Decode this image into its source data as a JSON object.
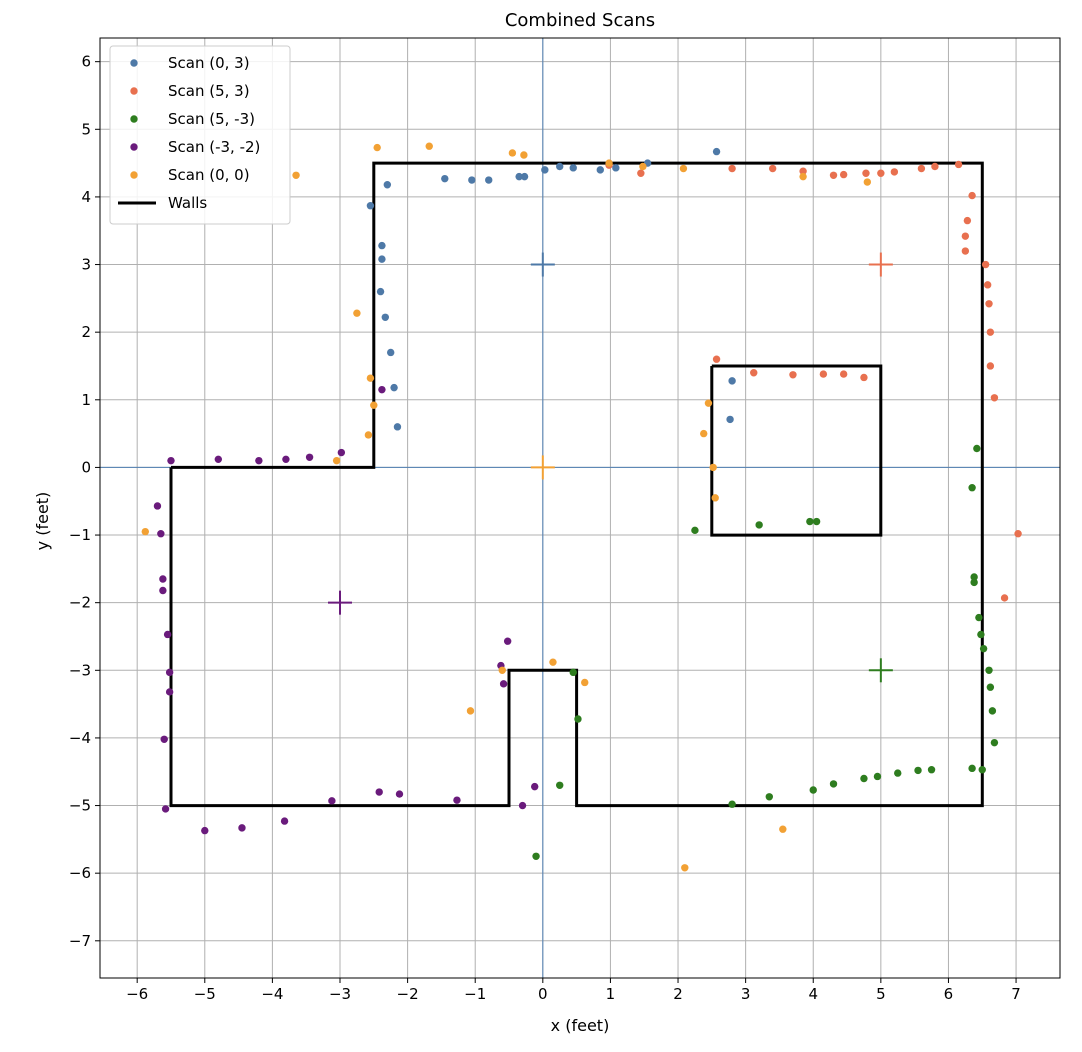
{
  "chart_data": {
    "type": "scatter",
    "title": "Combined Scans",
    "xlabel": "x (feet)",
    "ylabel": "y (feet)",
    "xlim": [
      -6.55,
      7.65
    ],
    "ylim": [
      -7.55,
      6.35
    ],
    "xticks": [
      -6,
      -5,
      -4,
      -3,
      -2,
      -1,
      0,
      1,
      2,
      3,
      4,
      5,
      6,
      7
    ],
    "yticks": [
      -7,
      -6,
      -5,
      -4,
      -3,
      -2,
      -1,
      0,
      1,
      2,
      3,
      4,
      5,
      6
    ],
    "grid": true,
    "legend_position": "top-left",
    "reference_lines": {
      "x": 0,
      "y": 0,
      "color": "#4f7fb3"
    },
    "series": [
      {
        "name": "Scan (0, 3)",
        "color": "#4e79a7",
        "origin": [
          0,
          3
        ],
        "points": [
          [
            2.57,
            4.67
          ],
          [
            1.55,
            4.5
          ],
          [
            1.08,
            4.43
          ],
          [
            0.85,
            4.4
          ],
          [
            0.45,
            4.43
          ],
          [
            0.25,
            4.45
          ],
          [
            0.03,
            4.4
          ],
          [
            -0.27,
            4.3
          ],
          [
            -0.35,
            4.3
          ],
          [
            -0.8,
            4.25
          ],
          [
            -1.05,
            4.25
          ],
          [
            -1.45,
            4.27
          ],
          [
            -2.3,
            4.18
          ],
          [
            -2.55,
            3.87
          ],
          [
            -2.38,
            3.28
          ],
          [
            -2.38,
            3.08
          ],
          [
            -2.4,
            2.6
          ],
          [
            -2.33,
            2.22
          ],
          [
            -2.25,
            1.7
          ],
          [
            -2.2,
            1.18
          ],
          [
            -2.15,
            0.6
          ],
          [
            2.8,
            1.28
          ],
          [
            2.77,
            0.71
          ]
        ]
      },
      {
        "name": "Scan (5, 3)",
        "color": "#e8704f",
        "origin": [
          5,
          3
        ],
        "points": [
          [
            0.98,
            4.47
          ],
          [
            1.45,
            4.35
          ],
          [
            2.8,
            4.42
          ],
          [
            3.4,
            4.42
          ],
          [
            3.85,
            4.38
          ],
          [
            4.3,
            4.32
          ],
          [
            4.45,
            4.33
          ],
          [
            4.78,
            4.35
          ],
          [
            5.0,
            4.35
          ],
          [
            5.2,
            4.37
          ],
          [
            5.6,
            4.42
          ],
          [
            5.8,
            4.45
          ],
          [
            6.15,
            4.48
          ],
          [
            6.35,
            4.02
          ],
          [
            6.28,
            3.65
          ],
          [
            6.25,
            3.42
          ],
          [
            6.25,
            3.2
          ],
          [
            6.55,
            3.0
          ],
          [
            6.58,
            2.7
          ],
          [
            6.6,
            2.42
          ],
          [
            6.62,
            2.0
          ],
          [
            6.62,
            1.5
          ],
          [
            6.68,
            1.03
          ],
          [
            7.03,
            -0.98
          ],
          [
            6.83,
            -1.93
          ],
          [
            2.57,
            1.6
          ],
          [
            3.12,
            1.4
          ],
          [
            3.7,
            1.37
          ],
          [
            4.15,
            1.38
          ],
          [
            4.45,
            1.38
          ],
          [
            4.75,
            1.33
          ]
        ]
      },
      {
        "name": "Scan (5, -3)",
        "color": "#2e7d1f",
        "origin": [
          5,
          -3
        ],
        "points": [
          [
            6.42,
            0.28
          ],
          [
            6.35,
            -0.3
          ],
          [
            6.38,
            -1.62
          ],
          [
            6.38,
            -1.7
          ],
          [
            6.45,
            -2.22
          ],
          [
            6.48,
            -2.47
          ],
          [
            6.52,
            -2.68
          ],
          [
            6.6,
            -3.0
          ],
          [
            6.62,
            -3.25
          ],
          [
            6.65,
            -3.6
          ],
          [
            6.68,
            -4.07
          ],
          [
            6.35,
            -4.45
          ],
          [
            6.5,
            -4.47
          ],
          [
            5.75,
            -4.47
          ],
          [
            5.55,
            -4.48
          ],
          [
            5.25,
            -4.52
          ],
          [
            4.95,
            -4.57
          ],
          [
            4.75,
            -4.6
          ],
          [
            4.3,
            -4.68
          ],
          [
            4.0,
            -4.77
          ],
          [
            3.35,
            -4.87
          ],
          [
            2.8,
            -4.98
          ],
          [
            2.25,
            -0.93
          ],
          [
            3.2,
            -0.85
          ],
          [
            3.95,
            -0.8
          ],
          [
            4.05,
            -0.8
          ],
          [
            0.45,
            -3.03
          ],
          [
            0.52,
            -3.72
          ],
          [
            0.25,
            -4.7
          ],
          [
            -0.1,
            -5.75
          ]
        ]
      },
      {
        "name": "Scan (-3, -2)",
        "color": "#6a1b7c",
        "origin": [
          -3,
          -2
        ],
        "points": [
          [
            -5.5,
            0.1
          ],
          [
            -4.8,
            0.12
          ],
          [
            -4.2,
            0.1
          ],
          [
            -3.8,
            0.12
          ],
          [
            -3.45,
            0.15
          ],
          [
            -2.98,
            0.22
          ],
          [
            -2.38,
            1.15
          ],
          [
            -5.7,
            -0.57
          ],
          [
            -5.65,
            -0.98
          ],
          [
            -5.62,
            -1.65
          ],
          [
            -5.62,
            -1.82
          ],
          [
            -5.55,
            -2.47
          ],
          [
            -5.52,
            -3.03
          ],
          [
            -5.52,
            -3.32
          ],
          [
            -5.6,
            -4.02
          ],
          [
            -5.58,
            -5.05
          ],
          [
            -5.0,
            -5.37
          ],
          [
            -4.45,
            -5.33
          ],
          [
            -3.82,
            -5.23
          ],
          [
            -3.12,
            -4.93
          ],
          [
            -2.42,
            -4.8
          ],
          [
            -2.12,
            -4.83
          ],
          [
            -1.27,
            -4.92
          ],
          [
            -0.52,
            -2.57
          ],
          [
            -0.62,
            -2.93
          ],
          [
            -0.58,
            -3.2
          ],
          [
            -0.3,
            -5.0
          ],
          [
            -0.12,
            -4.72
          ]
        ]
      },
      {
        "name": "Scan (0, 0)",
        "color": "#f2a134",
        "origin": [
          0,
          0
        ],
        "points": [
          [
            -3.65,
            4.32
          ],
          [
            -2.45,
            4.73
          ],
          [
            -1.68,
            4.75
          ],
          [
            -0.45,
            4.65
          ],
          [
            -0.28,
            4.62
          ],
          [
            0.98,
            4.5
          ],
          [
            1.48,
            4.45
          ],
          [
            2.08,
            4.42
          ],
          [
            3.85,
            4.3
          ],
          [
            4.8,
            4.22
          ],
          [
            -2.75,
            2.28
          ],
          [
            -2.55,
            1.32
          ],
          [
            -2.5,
            0.92
          ],
          [
            -2.58,
            0.48
          ],
          [
            -3.05,
            0.1
          ],
          [
            -5.88,
            -0.95
          ],
          [
            2.45,
            0.95
          ],
          [
            2.38,
            0.5
          ],
          [
            2.52,
            0.0
          ],
          [
            2.55,
            -0.45
          ],
          [
            0.15,
            -2.88
          ],
          [
            0.62,
            -3.18
          ],
          [
            -0.6,
            -3.0
          ],
          [
            -1.07,
            -3.6
          ],
          [
            3.55,
            -5.35
          ],
          [
            2.1,
            -5.92
          ]
        ]
      }
    ],
    "walls": {
      "name": "Walls",
      "color": "#000000",
      "polylines": [
        [
          [
            -5.5,
            0
          ],
          [
            -2.5,
            0
          ],
          [
            -2.5,
            4.5
          ],
          [
            6.5,
            4.5
          ],
          [
            6.5,
            -5
          ],
          [
            0.5,
            -5
          ],
          [
            0.5,
            -3
          ],
          [
            -0.5,
            -3
          ],
          [
            -0.5,
            -5
          ],
          [
            -5.5,
            -5
          ],
          [
            -5.5,
            0
          ]
        ],
        [
          [
            2.5,
            1.5
          ],
          [
            5,
            1.5
          ],
          [
            5,
            -1
          ],
          [
            2.5,
            -1
          ],
          [
            2.5,
            1.5
          ]
        ]
      ]
    }
  }
}
